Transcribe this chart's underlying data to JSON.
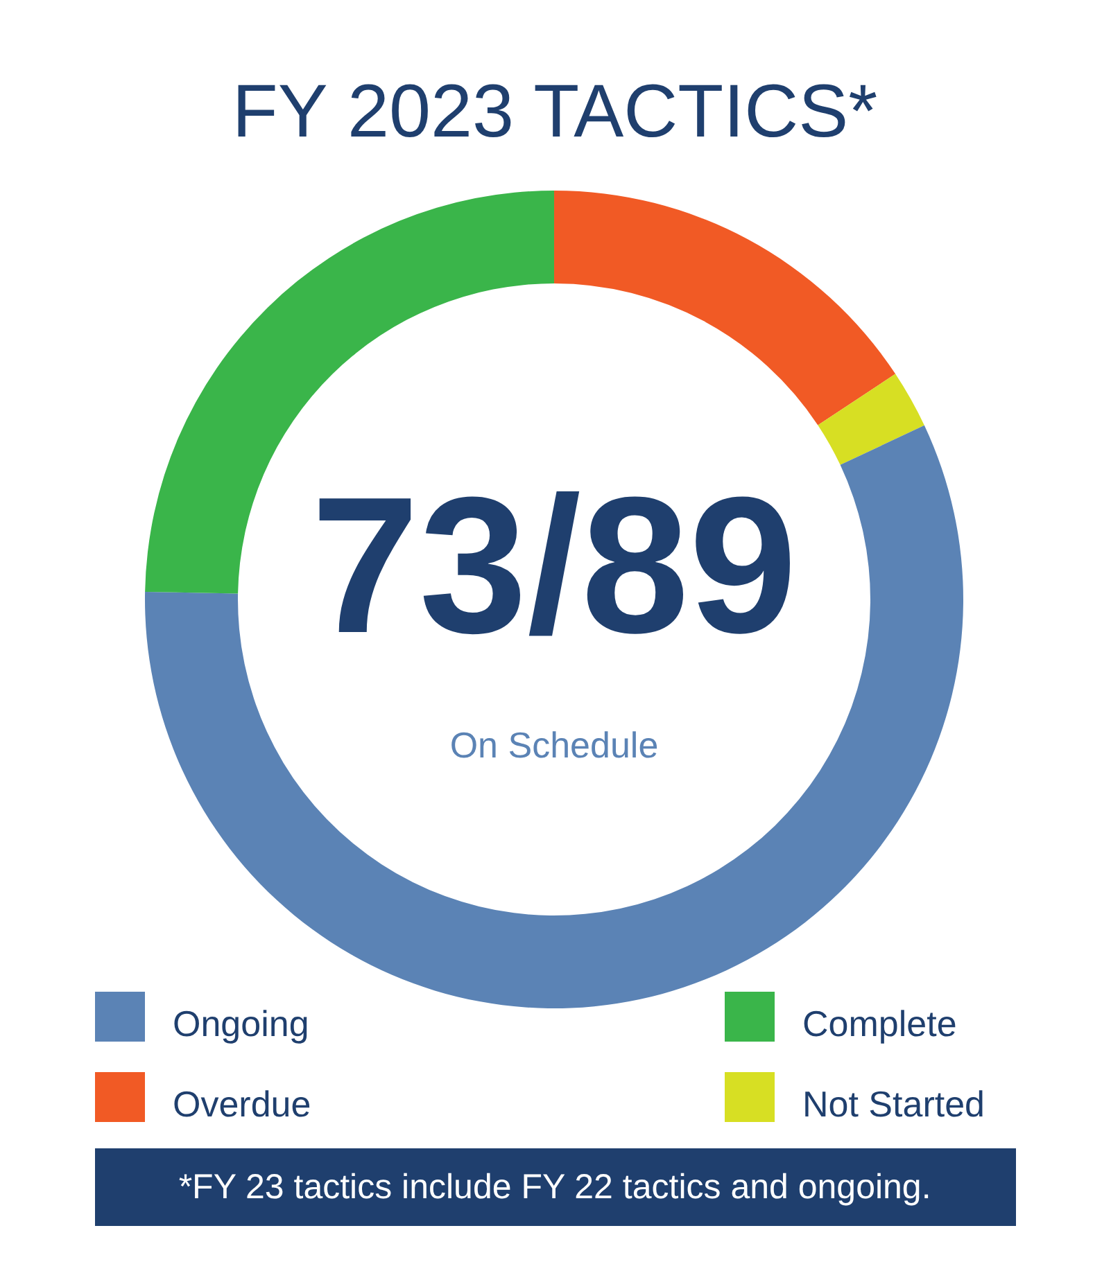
{
  "chart_data": {
    "type": "donut",
    "title": "FY 2023 TACTICS*",
    "categories": [
      "Overdue",
      "Not Started",
      "Ongoing",
      "Complete"
    ],
    "values": [
      15.7,
      2.3,
      57.3,
      24.7
    ],
    "colors": [
      "#f15a25",
      "#d7df23",
      "#5b83b5",
      "#3ab54a"
    ],
    "legend": "bottom",
    "annotations": [
      "73/89",
      "On Schedule",
      "*FY 23 tactics include FY 22 tactics and ongoing."
    ]
  }
}
